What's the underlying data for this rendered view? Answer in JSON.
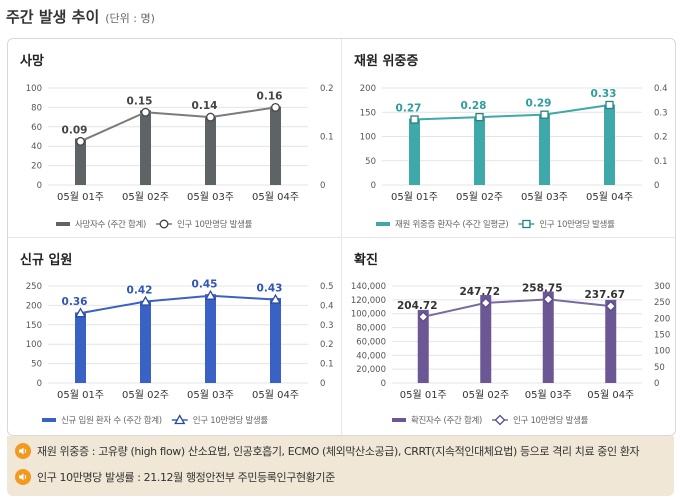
{
  "header": {
    "title": "주간 발생 추이",
    "unit": "(단위 : 명)"
  },
  "chart_data": [
    {
      "type": "bar",
      "title": "사망",
      "categories": [
        "05월 01주",
        "05월 02주",
        "05월 03주",
        "05월 04주"
      ],
      "ylim": [
        0,
        100
      ],
      "y_ticks": [
        0,
        20,
        40,
        60,
        80,
        100
      ],
      "y2lim": [
        0,
        0.2
      ],
      "y2_ticks": [
        "0",
        "0.1",
        "0.2"
      ],
      "series": [
        {
          "name": "사망자수 (주간 합계)",
          "kind": "bar",
          "axis": "left",
          "values": [
            48,
            77,
            71,
            81
          ]
        },
        {
          "name": "인구 10만명당 발생률",
          "kind": "line",
          "axis": "right",
          "values": [
            0.09,
            0.15,
            0.14,
            0.16
          ],
          "labels": [
            "0.09",
            "0.15",
            "0.14",
            "0.16"
          ]
        }
      ],
      "colors": {
        "bar": "#5e6465",
        "line": "#7b7b7b",
        "marker_fill": "#ffffff",
        "marker_stroke": "#444444"
      },
      "marker": "circle",
      "legend_position": "bottom"
    },
    {
      "type": "bar",
      "title": "재원 위중증",
      "categories": [
        "05월 01주",
        "05월 02주",
        "05월 03주",
        "05월 04주"
      ],
      "ylim": [
        0,
        200
      ],
      "y_ticks": [
        0,
        50,
        100,
        150,
        200
      ],
      "y2lim": [
        0,
        0.4
      ],
      "y2_ticks": [
        "0",
        "0.1",
        "0.2",
        "0.3",
        "0.4"
      ],
      "series": [
        {
          "name": "재원 위중증 환자수 (주간 일평균)",
          "kind": "bar",
          "axis": "left",
          "values": [
            137,
            141,
            146,
            166
          ]
        },
        {
          "name": "인구 10만명당 발생률",
          "kind": "line",
          "axis": "right",
          "values": [
            0.27,
            0.28,
            0.29,
            0.33
          ],
          "labels": [
            "0.27",
            "0.28",
            "0.29",
            "0.33"
          ]
        }
      ],
      "colors": {
        "bar": "#3fa9a9",
        "line": "#3fa9a9",
        "marker_fill": "#ffffff",
        "marker_stroke": "#2b7f7f",
        "label": "#2f9e9e"
      },
      "marker": "square",
      "legend_position": "bottom"
    },
    {
      "type": "bar",
      "title": "신규 입원",
      "categories": [
        "05월 01주",
        "05월 02주",
        "05월 03주",
        "05월 04주"
      ],
      "ylim": [
        0,
        250
      ],
      "y_ticks": [
        0,
        50,
        100,
        150,
        200,
        250
      ],
      "y2lim": [
        0,
        0.5
      ],
      "y2_ticks": [
        "0",
        "0.1",
        "0.2",
        "0.3",
        "0.4",
        "0.5"
      ],
      "series": [
        {
          "name": "신규 입원 환자 수 (주간 합계)",
          "kind": "bar",
          "axis": "left",
          "values": [
            182,
            212,
            229,
            219
          ]
        },
        {
          "name": "인구 10만명당 발생률",
          "kind": "line",
          "axis": "right",
          "values": [
            0.36,
            0.42,
            0.45,
            0.43
          ],
          "labels": [
            "0.36",
            "0.42",
            "0.45",
            "0.43"
          ]
        }
      ],
      "colors": {
        "bar": "#3a62c4",
        "line": "#3a62c4",
        "marker_fill": "#ffffff",
        "marker_stroke": "#2a4aa0",
        "label": "#2f55b8"
      },
      "marker": "triangle",
      "legend_position": "bottom"
    },
    {
      "type": "bar",
      "title": "확진",
      "categories": [
        "05월 01주",
        "05월 02주",
        "05월 03주",
        "05월 04주"
      ],
      "ylim": [
        0,
        140000
      ],
      "y_ticks": [
        "0",
        "20,000",
        "40,000",
        "60,000",
        "80,000",
        "100,000",
        "120,000",
        "140,000"
      ],
      "y2lim": [
        0,
        300
      ],
      "y2_ticks": [
        "0",
        "50",
        "100",
        "150",
        "200",
        "250",
        "300"
      ],
      "series": [
        {
          "name": "확진자수 (주간 합계)",
          "kind": "bar",
          "axis": "left",
          "values": [
            105500,
            127000,
            132000,
            120000
          ]
        },
        {
          "name": "인구 10만명당 발생률",
          "kind": "line",
          "axis": "right",
          "values": [
            204.72,
            247.72,
            258.75,
            237.67
          ],
          "labels": [
            "204.72",
            "247.72",
            "258.75",
            "237.67"
          ]
        }
      ],
      "colors": {
        "bar": "#6b5794",
        "line": "#7a6aa0",
        "marker_fill": "#ffffff",
        "marker_stroke": "#5a4a86",
        "label": "#333333"
      },
      "marker": "diamond",
      "legend_position": "bottom"
    }
  ],
  "notes": [
    {
      "icon": "speaker-icon",
      "text": "재원 위중증 : 고유량 (high flow) 산소요법, 인공호흡기, ECMO (체외막산소공급), CRRT(지속적인대체요법) 등으로 격리 치료 중인 환자"
    },
    {
      "icon": "speaker-icon",
      "text": "인구 10만명당 발생률 : 21.12월 행정안전부 주민등록인구현황기준"
    }
  ]
}
